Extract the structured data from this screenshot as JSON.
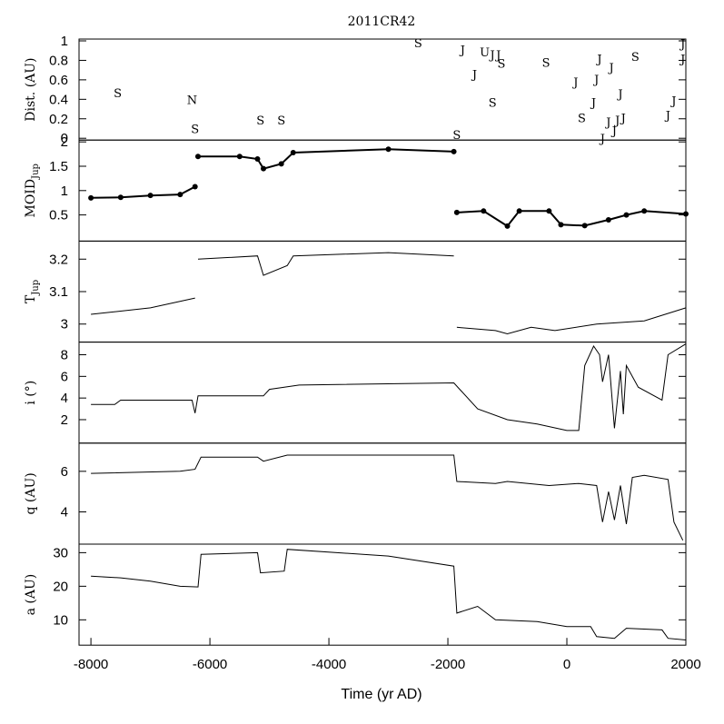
{
  "chart_data": {
    "type": "line",
    "title": "2011CR42",
    "xlabel": "Time (yr AD)",
    "xlim": [
      -8200,
      2000
    ],
    "x_ticks": [
      "-8000",
      "-6000",
      "-4000",
      "-2000",
      "0",
      "2000"
    ],
    "panels": [
      {
        "id": "dist",
        "ylabel": "Dist. (AU)",
        "ylim": [
          0,
          1
        ],
        "y_ticks": [
          "0",
          "0.2",
          "0.4",
          "0.6",
          "0.8",
          "1"
        ],
        "kind": "markers",
        "markers": [
          {
            "t": -7550,
            "d": 0.47,
            "label": "S"
          },
          {
            "t": -6300,
            "d": 0.4,
            "label": "N"
          },
          {
            "t": -6250,
            "d": 0.1,
            "label": "S"
          },
          {
            "t": -5150,
            "d": 0.19,
            "label": "S"
          },
          {
            "t": -4800,
            "d": 0.19,
            "label": "S"
          },
          {
            "t": -2500,
            "d": 0.98,
            "label": "S"
          },
          {
            "t": -1850,
            "d": 0.04,
            "label": "S"
          },
          {
            "t": -1750,
            "d": 0.91,
            "label": "J"
          },
          {
            "t": -1550,
            "d": 0.66,
            "label": "J"
          },
          {
            "t": -1380,
            "d": 0.89,
            "label": "U"
          },
          {
            "t": -1250,
            "d": 0.86,
            "label": "J"
          },
          {
            "t": -1150,
            "d": 0.86,
            "label": "J"
          },
          {
            "t": -1100,
            "d": 0.77,
            "label": "S"
          },
          {
            "t": -1250,
            "d": 0.37,
            "label": "S"
          },
          {
            "t": -350,
            "d": 0.78,
            "label": "S"
          },
          {
            "t": 150,
            "d": 0.58,
            "label": "J"
          },
          {
            "t": 250,
            "d": 0.21,
            "label": "S"
          },
          {
            "t": 450,
            "d": 0.37,
            "label": "J"
          },
          {
            "t": 500,
            "d": 0.61,
            "label": "J"
          },
          {
            "t": 550,
            "d": 0.82,
            "label": "J"
          },
          {
            "t": 600,
            "d": 0.0,
            "label": "J"
          },
          {
            "t": 700,
            "d": 0.17,
            "label": "J"
          },
          {
            "t": 750,
            "d": 0.73,
            "label": "J"
          },
          {
            "t": 800,
            "d": 0.08,
            "label": "J"
          },
          {
            "t": 850,
            "d": 0.19,
            "label": "J"
          },
          {
            "t": 900,
            "d": 0.46,
            "label": "J"
          },
          {
            "t": 950,
            "d": 0.21,
            "label": "J"
          },
          {
            "t": 1150,
            "d": 0.84,
            "label": "S"
          },
          {
            "t": 1700,
            "d": 0.24,
            "label": "J"
          },
          {
            "t": 1800,
            "d": 0.39,
            "label": "J"
          },
          {
            "t": 1950,
            "d": 0.82,
            "label": "J"
          },
          {
            "t": 1950,
            "d": 0.97,
            "label": "J"
          }
        ]
      },
      {
        "id": "moid",
        "ylabel": "MOID",
        "ylabel_sub": "Jup",
        "ylim": [
          0,
          2
        ],
        "y_ticks": [
          "0.5",
          "1",
          "1.5",
          "2"
        ],
        "kind": "points",
        "segments": [
          [
            [
              -8000,
              0.85
            ],
            [
              -7500,
              0.86
            ],
            [
              -7000,
              0.9
            ],
            [
              -6500,
              0.92
            ],
            [
              -6250,
              1.08
            ]
          ],
          [
            [
              -6200,
              1.7
            ],
            [
              -5500,
              1.7
            ],
            [
              -5200,
              1.65
            ],
            [
              -5100,
              1.45
            ],
            [
              -4800,
              1.55
            ],
            [
              -4600,
              1.78
            ],
            [
              -3000,
              1.85
            ],
            [
              -1900,
              1.8
            ]
          ],
          [
            [
              -1850,
              0.55
            ],
            [
              -1400,
              0.58
            ],
            [
              -1000,
              0.27
            ],
            [
              -800,
              0.58
            ],
            [
              -300,
              0.58
            ],
            [
              -100,
              0.3
            ],
            [
              300,
              0.28
            ],
            [
              700,
              0.4
            ],
            [
              1000,
              0.5
            ],
            [
              1300,
              0.58
            ],
            [
              2000,
              0.52
            ]
          ]
        ]
      },
      {
        "id": "tjup",
        "ylabel": "T",
        "ylabel_sub": "Jup",
        "ylim": [
          2.95,
          3.25
        ],
        "y_ticks": [
          "3",
          "3.1",
          "3.2"
        ],
        "kind": "line",
        "segments": [
          [
            [
              -8000,
              3.03
            ],
            [
              -7000,
              3.05
            ],
            [
              -6250,
              3.08
            ]
          ],
          [
            [
              -6200,
              3.2
            ],
            [
              -5200,
              3.21
            ],
            [
              -5100,
              3.15
            ],
            [
              -4700,
              3.18
            ],
            [
              -4600,
              3.21
            ],
            [
              -3000,
              3.22
            ],
            [
              -1900,
              3.21
            ]
          ],
          [
            [
              -1850,
              2.99
            ],
            [
              -1200,
              2.98
            ],
            [
              -1000,
              2.97
            ],
            [
              -600,
              2.99
            ],
            [
              -200,
              2.98
            ],
            [
              500,
              3.0
            ],
            [
              1300,
              3.01
            ],
            [
              2000,
              3.05
            ]
          ]
        ]
      },
      {
        "id": "inc",
        "ylabel": "i (°)",
        "ylim": [
          0,
          9
        ],
        "y_ticks": [
          "2",
          "4",
          "6",
          "8"
        ],
        "kind": "line",
        "segments": [
          [
            [
              -8000,
              3.4
            ],
            [
              -7600,
              3.4
            ],
            [
              -7500,
              3.8
            ],
            [
              -6300,
              3.8
            ],
            [
              -6250,
              2.6
            ],
            [
              -6200,
              4.2
            ],
            [
              -5100,
              4.2
            ],
            [
              -5000,
              4.8
            ],
            [
              -4500,
              5.2
            ],
            [
              -1900,
              5.4
            ],
            [
              -1800,
              4.8
            ],
            [
              -1500,
              3.0
            ],
            [
              -1000,
              2.0
            ],
            [
              -500,
              1.6
            ],
            [
              0,
              1.0
            ],
            [
              200,
              1.0
            ],
            [
              300,
              7.0
            ],
            [
              450,
              8.8
            ],
            [
              550,
              8.0
            ],
            [
              600,
              5.5
            ],
            [
              700,
              8.0
            ],
            [
              800,
              1.2
            ],
            [
              900,
              6.5
            ],
            [
              950,
              2.5
            ],
            [
              1000,
              7.0
            ],
            [
              1200,
              5.0
            ],
            [
              1600,
              3.8
            ],
            [
              1700,
              8.0
            ],
            [
              2000,
              9.0
            ]
          ]
        ]
      },
      {
        "id": "q",
        "ylabel": "q (AU)",
        "ylim": [
          2.5,
          7.3
        ],
        "y_ticks": [
          "4",
          "6"
        ],
        "kind": "line",
        "segments": [
          [
            [
              -8000,
              5.9
            ],
            [
              -6500,
              6.0
            ],
            [
              -6250,
              6.1
            ],
            [
              -6150,
              6.7
            ],
            [
              -5200,
              6.7
            ],
            [
              -5100,
              6.5
            ],
            [
              -4700,
              6.8
            ],
            [
              -1900,
              6.8
            ],
            [
              -1850,
              5.5
            ],
            [
              -1200,
              5.4
            ],
            [
              -1000,
              5.5
            ],
            [
              -300,
              5.3
            ],
            [
              200,
              5.4
            ],
            [
              500,
              5.3
            ],
            [
              600,
              3.5
            ],
            [
              700,
              5.0
            ],
            [
              800,
              3.6
            ],
            [
              900,
              5.3
            ],
            [
              1000,
              3.4
            ],
            [
              1100,
              5.7
            ],
            [
              1300,
              5.8
            ],
            [
              1700,
              5.6
            ],
            [
              1800,
              3.5
            ],
            [
              1950,
              2.6
            ]
          ]
        ]
      },
      {
        "id": "a",
        "ylabel": "a (AU)",
        "ylim": [
          3,
          32
        ],
        "y_ticks": [
          "10",
          "20",
          "30"
        ],
        "kind": "line",
        "segments": [
          [
            [
              -8000,
              23
            ],
            [
              -7500,
              22.5
            ],
            [
              -7000,
              21.5
            ],
            [
              -6500,
              20
            ],
            [
              -6200,
              19.8
            ],
            [
              -6150,
              29.5
            ],
            [
              -5200,
              30
            ],
            [
              -5150,
              24
            ],
            [
              -4750,
              24.5
            ],
            [
              -4700,
              31
            ],
            [
              -3000,
              29
            ],
            [
              -1900,
              26
            ],
            [
              -1850,
              12
            ],
            [
              -1500,
              14
            ],
            [
              -1200,
              10
            ],
            [
              -500,
              9.5
            ],
            [
              0,
              8
            ],
            [
              400,
              8
            ],
            [
              500,
              5
            ],
            [
              800,
              4.5
            ],
            [
              1000,
              7.5
            ],
            [
              1600,
              7
            ],
            [
              1700,
              4.5
            ],
            [
              2000,
              4
            ]
          ]
        ]
      }
    ]
  }
}
